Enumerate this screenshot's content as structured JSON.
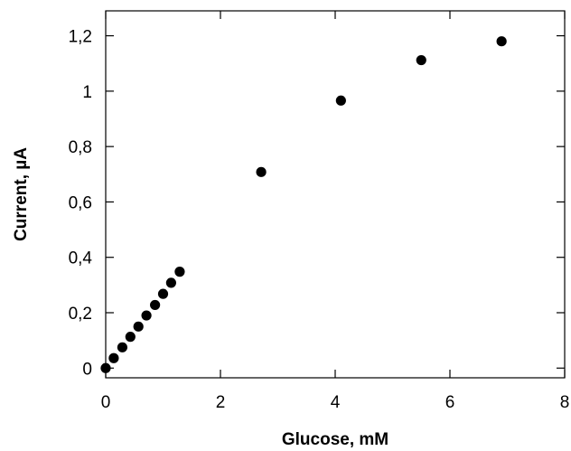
{
  "chart_data": {
    "type": "scatter",
    "title": "",
    "xlabel": "Glucose, mM",
    "ylabel": "Current, µA",
    "xlim": [
      0,
      8
    ],
    "ylim": [
      -0.035,
      1.29
    ],
    "grid": false,
    "legend": "none",
    "x_ticks": [
      0,
      2,
      4,
      6,
      8
    ],
    "x_tick_labels": [
      "0",
      "2",
      "4",
      "6",
      "8"
    ],
    "y_ticks": [
      0,
      0.2,
      0.4,
      0.6,
      0.8,
      1.0,
      1.2
    ],
    "y_tick_labels": [
      "0",
      "0,2",
      "0,4",
      "0,6",
      "0,8",
      "1",
      "1,2"
    ],
    "marker_color": "#000000",
    "series": [
      {
        "x": [
          0.0,
          0.14,
          0.29,
          0.43,
          0.57,
          0.71,
          0.86,
          1.0,
          1.14,
          1.29,
          2.71,
          4.1,
          5.5,
          6.9
        ],
        "y": [
          0.0,
          0.036,
          0.075,
          0.113,
          0.15,
          0.19,
          0.228,
          0.268,
          0.308,
          0.348,
          0.708,
          0.966,
          1.112,
          1.18
        ]
      }
    ]
  }
}
